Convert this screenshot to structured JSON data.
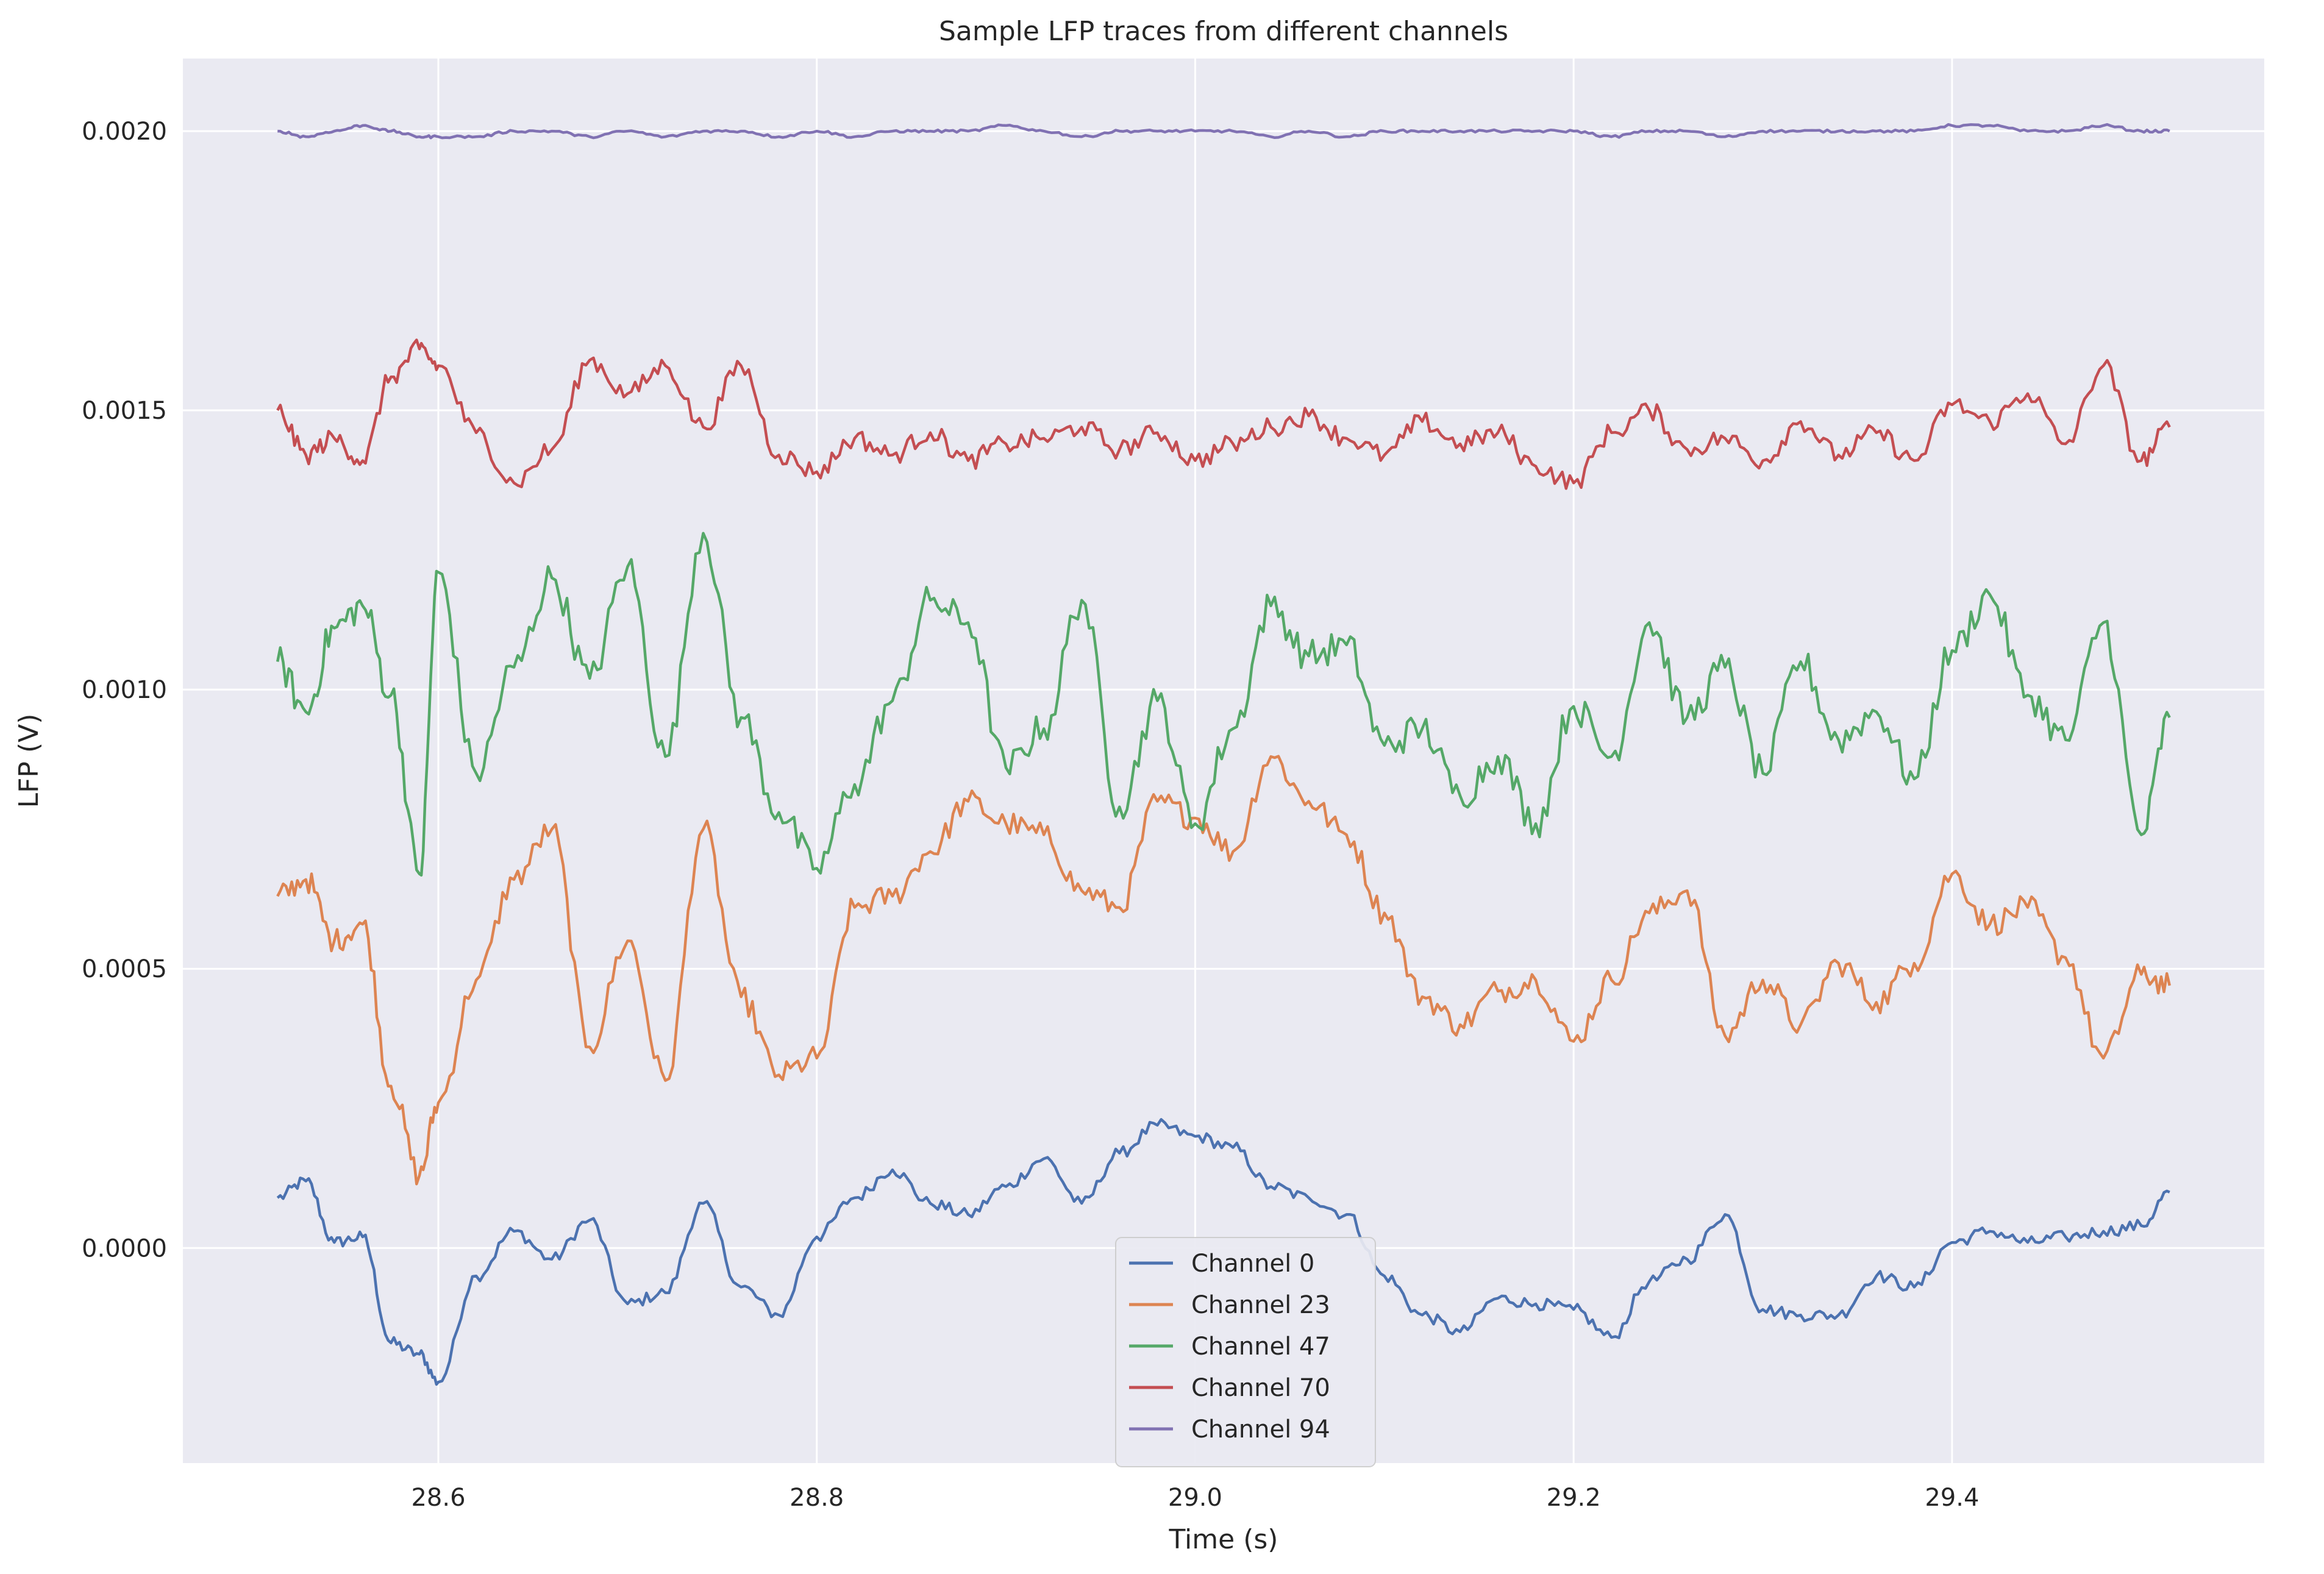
{
  "chart_data": {
    "type": "line",
    "title": "Sample LFP traces from different channels",
    "xlabel": "Time (s)",
    "ylabel": "LFP (V)",
    "xlim": [
      28.465,
      29.565
    ],
    "ylim": [
      -0.000385,
      0.00213
    ],
    "xticks": [
      28.6,
      28.8,
      29.0,
      29.2,
      29.4
    ],
    "xtick_labels": [
      "28.6",
      "28.8",
      "29.0",
      "29.2",
      "29.4"
    ],
    "yticks": [
      0.0,
      0.0005,
      0.001,
      0.0015,
      0.002
    ],
    "ytick_labels": [
      "0.0000",
      "0.0005",
      "0.0010",
      "0.0015",
      "0.0020"
    ],
    "grid": true,
    "legend_position": "bottom-center",
    "x_range": [
      28.515,
      29.515
    ],
    "background": "#eaeaf2",
    "grid_color": "#ffffff",
    "series": [
      {
        "name": "Channel 0",
        "color": "#4c72b0",
        "x": [
          28.515,
          28.53,
          28.545,
          28.56,
          28.575,
          28.59,
          28.6,
          28.62,
          28.64,
          28.66,
          28.68,
          28.7,
          28.72,
          28.74,
          28.76,
          28.78,
          28.8,
          28.82,
          28.84,
          28.86,
          28.88,
          28.9,
          28.92,
          28.94,
          28.96,
          28.98,
          29.0,
          29.02,
          29.04,
          29.06,
          29.08,
          29.1,
          29.12,
          29.14,
          29.16,
          29.18,
          29.2,
          29.22,
          29.24,
          29.26,
          29.28,
          29.3,
          29.32,
          29.34,
          29.36,
          29.38,
          29.4,
          29.42,
          29.44,
          29.46,
          29.48,
          29.5,
          29.515
        ],
        "y": [
          9e-05,
          0.00012,
          1e-05,
          2e-05,
          -0.00017,
          -0.00019,
          -0.00024,
          -5e-05,
          3e-05,
          -2e-05,
          5e-05,
          -0.0001,
          -8e-05,
          8e-05,
          -7e-05,
          -0.00012,
          2e-05,
          9e-05,
          0.00014,
          8e-05,
          6e-05,
          0.00011,
          0.00016,
          8e-05,
          0.00017,
          0.00022,
          0.0002,
          0.00018,
          0.00011,
          9e-05,
          6e-05,
          -5e-05,
          -0.00012,
          -0.00015,
          -9e-05,
          -0.0001,
          -0.00011,
          -0.00016,
          -6e-05,
          -2e-05,
          6e-05,
          -0.00011,
          -0.00012,
          -0.00012,
          -5e-05,
          -7e-05,
          1e-05,
          3e-05,
          1e-05,
          2e-05,
          3e-05,
          4e-05,
          0.0001
        ]
      },
      {
        "name": "Channel 23",
        "color": "#dd8452",
        "x": [
          28.515,
          28.53,
          28.545,
          28.56,
          28.575,
          28.59,
          28.6,
          28.62,
          28.64,
          28.66,
          28.68,
          28.7,
          28.72,
          28.74,
          28.76,
          28.78,
          28.8,
          28.82,
          28.84,
          28.86,
          28.88,
          28.9,
          28.92,
          28.94,
          28.96,
          28.98,
          29.0,
          29.02,
          29.04,
          29.06,
          29.08,
          29.1,
          29.12,
          29.14,
          29.16,
          29.18,
          29.2,
          29.22,
          29.24,
          29.26,
          29.28,
          29.3,
          29.32,
          29.34,
          29.36,
          29.38,
          29.4,
          29.42,
          29.44,
          29.46,
          29.48,
          29.5,
          29.515
        ],
        "y": [
          0.00063,
          0.00066,
          0.00055,
          0.00058,
          0.00029,
          0.00013,
          0.00026,
          0.00048,
          0.00066,
          0.00075,
          0.00036,
          0.00055,
          0.0003,
          0.00075,
          0.00045,
          0.00031,
          0.00034,
          0.00061,
          0.00063,
          0.00071,
          0.0008,
          0.00076,
          0.00074,
          0.00064,
          0.00061,
          0.0008,
          0.00077,
          0.00071,
          0.00088,
          0.0008,
          0.00074,
          0.0006,
          0.00045,
          0.0004,
          0.00046,
          0.00048,
          0.00037,
          0.00048,
          0.0006,
          0.00064,
          0.00038,
          0.00048,
          0.0004,
          0.00051,
          0.00044,
          0.00051,
          0.00067,
          0.00058,
          0.00061,
          0.00052,
          0.00034,
          0.00049,
          0.00047
        ]
      },
      {
        "name": "Channel 47",
        "color": "#55a868",
        "x": [
          28.515,
          28.53,
          28.545,
          28.56,
          28.575,
          28.59,
          28.6,
          28.62,
          28.64,
          28.66,
          28.68,
          28.7,
          28.72,
          28.74,
          28.76,
          28.78,
          28.8,
          28.82,
          28.84,
          28.86,
          28.88,
          28.9,
          28.92,
          28.94,
          28.96,
          28.98,
          29.0,
          29.02,
          29.04,
          29.06,
          29.08,
          29.1,
          29.12,
          29.14,
          29.16,
          29.18,
          29.2,
          29.22,
          29.24,
          29.26,
          29.28,
          29.3,
          29.32,
          29.34,
          29.36,
          29.38,
          29.4,
          29.42,
          29.44,
          29.46,
          29.48,
          29.5,
          29.515
        ],
        "y": [
          0.00105,
          0.00096,
          0.00111,
          0.00115,
          0.00099,
          0.00067,
          0.00121,
          0.00085,
          0.00104,
          0.0012,
          0.00102,
          0.00122,
          0.00088,
          0.00128,
          0.00095,
          0.00078,
          0.00068,
          0.00083,
          0.00098,
          0.00116,
          0.00112,
          0.00086,
          0.00093,
          0.00116,
          0.00079,
          0.00098,
          0.00076,
          0.00093,
          0.00115,
          0.00106,
          0.00108,
          0.0009,
          0.00093,
          0.00081,
          0.00088,
          0.00076,
          0.00097,
          0.00088,
          0.00112,
          0.00095,
          0.00104,
          0.00085,
          0.00105,
          0.00091,
          0.00096,
          0.00084,
          0.00107,
          0.00117,
          0.00099,
          0.00091,
          0.00112,
          0.00074,
          0.00095
        ]
      },
      {
        "name": "Channel 70",
        "color": "#c44e52",
        "x": [
          28.515,
          28.53,
          28.545,
          28.56,
          28.575,
          28.59,
          28.6,
          28.62,
          28.64,
          28.66,
          28.68,
          28.7,
          28.72,
          28.74,
          28.76,
          28.78,
          28.8,
          28.82,
          28.84,
          28.86,
          28.88,
          28.9,
          28.92,
          28.94,
          28.96,
          28.98,
          29.0,
          29.02,
          29.04,
          29.06,
          29.08,
          29.1,
          29.12,
          29.14,
          29.16,
          29.18,
          29.2,
          29.22,
          29.24,
          29.26,
          29.28,
          29.3,
          29.32,
          29.34,
          29.36,
          29.38,
          29.4,
          29.42,
          29.44,
          29.46,
          29.48,
          29.5,
          29.515
        ],
        "y": [
          0.0015,
          0.00142,
          0.00145,
          0.00141,
          0.00156,
          0.00161,
          0.00158,
          0.00146,
          0.00137,
          0.00143,
          0.00159,
          0.00153,
          0.00158,
          0.00147,
          0.00158,
          0.00142,
          0.00139,
          0.00145,
          0.00142,
          0.00146,
          0.00141,
          0.00144,
          0.00145,
          0.00147,
          0.00143,
          0.00146,
          0.00141,
          0.00144,
          0.00147,
          0.00149,
          0.00145,
          0.00142,
          0.00148,
          0.00144,
          0.00146,
          0.0014,
          0.00137,
          0.00146,
          0.0015,
          0.00143,
          0.00145,
          0.00141,
          0.00148,
          0.00142,
          0.00146,
          0.00141,
          0.00151,
          0.00148,
          0.00153,
          0.00144,
          0.00158,
          0.00141,
          0.00147
        ]
      },
      {
        "name": "Channel 94",
        "color": "#8172b3",
        "x": [
          28.515,
          28.53,
          28.545,
          28.56,
          28.575,
          28.59,
          28.6,
          28.62,
          28.64,
          28.66,
          28.68,
          28.7,
          28.72,
          28.74,
          28.76,
          28.78,
          28.8,
          28.82,
          28.84,
          28.86,
          28.88,
          28.9,
          28.92,
          28.94,
          28.96,
          28.98,
          29.0,
          29.02,
          29.04,
          29.06,
          29.08,
          29.1,
          29.12,
          29.14,
          29.16,
          29.18,
          29.2,
          29.22,
          29.24,
          29.26,
          29.28,
          29.3,
          29.32,
          29.34,
          29.36,
          29.38,
          29.4,
          29.42,
          29.44,
          29.46,
          29.48,
          29.5,
          29.515
        ],
        "y": [
          0.002,
          0.00199,
          0.002,
          0.00201,
          0.002,
          0.00199,
          0.00199,
          0.00199,
          0.002,
          0.002,
          0.00199,
          0.002,
          0.00199,
          0.002,
          0.002,
          0.00199,
          0.002,
          0.00199,
          0.002,
          0.002,
          0.002,
          0.00201,
          0.002,
          0.00199,
          0.002,
          0.002,
          0.002,
          0.002,
          0.00199,
          0.002,
          0.00199,
          0.002,
          0.002,
          0.002,
          0.002,
          0.002,
          0.002,
          0.00199,
          0.002,
          0.002,
          0.00199,
          0.002,
          0.002,
          0.002,
          0.002,
          0.002,
          0.00201,
          0.00201,
          0.002,
          0.002,
          0.00201,
          0.002,
          0.002
        ]
      }
    ]
  }
}
